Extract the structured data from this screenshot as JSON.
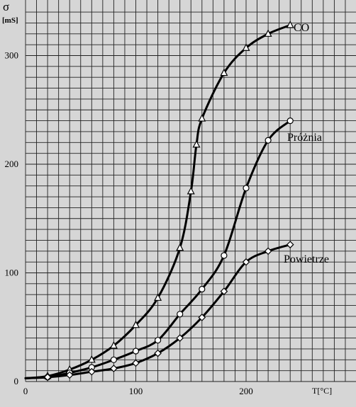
{
  "chart_data": {
    "type": "line",
    "xlabel": "T[°C]",
    "ylabel": "σ",
    "yunit": "[mS]",
    "xlim": [
      0,
      300
    ],
    "ylim": [
      0,
      333
    ],
    "grid": true,
    "x_ticks": [
      0,
      100,
      200
    ],
    "y_ticks": [
      0,
      100,
      200,
      300
    ],
    "series": [
      {
        "name": "CO",
        "marker": "triangle",
        "points": [
          [
            20,
            5
          ],
          [
            40,
            11
          ],
          [
            60,
            20
          ],
          [
            80,
            33
          ],
          [
            100,
            52
          ],
          [
            120,
            77
          ],
          [
            140,
            123
          ],
          [
            150,
            175
          ],
          [
            155,
            218
          ],
          [
            160,
            242
          ],
          [
            180,
            284
          ],
          [
            200,
            307
          ],
          [
            220,
            320
          ],
          [
            240,
            328
          ]
        ]
      },
      {
        "name": "Próżnia",
        "marker": "circle",
        "points": [
          [
            20,
            4
          ],
          [
            40,
            8
          ],
          [
            60,
            13
          ],
          [
            80,
            20
          ],
          [
            100,
            28
          ],
          [
            120,
            38
          ],
          [
            140,
            62
          ],
          [
            160,
            85
          ],
          [
            180,
            116
          ],
          [
            200,
            178
          ],
          [
            220,
            222
          ],
          [
            240,
            240
          ]
        ]
      },
      {
        "name": "Powietrze",
        "marker": "diamond",
        "points": [
          [
            20,
            4
          ],
          [
            40,
            6
          ],
          [
            60,
            9
          ],
          [
            80,
            12
          ],
          [
            100,
            17
          ],
          [
            120,
            26
          ],
          [
            140,
            40
          ],
          [
            160,
            59
          ],
          [
            180,
            83
          ],
          [
            200,
            110
          ],
          [
            220,
            120
          ],
          [
            240,
            126
          ]
        ]
      }
    ]
  }
}
